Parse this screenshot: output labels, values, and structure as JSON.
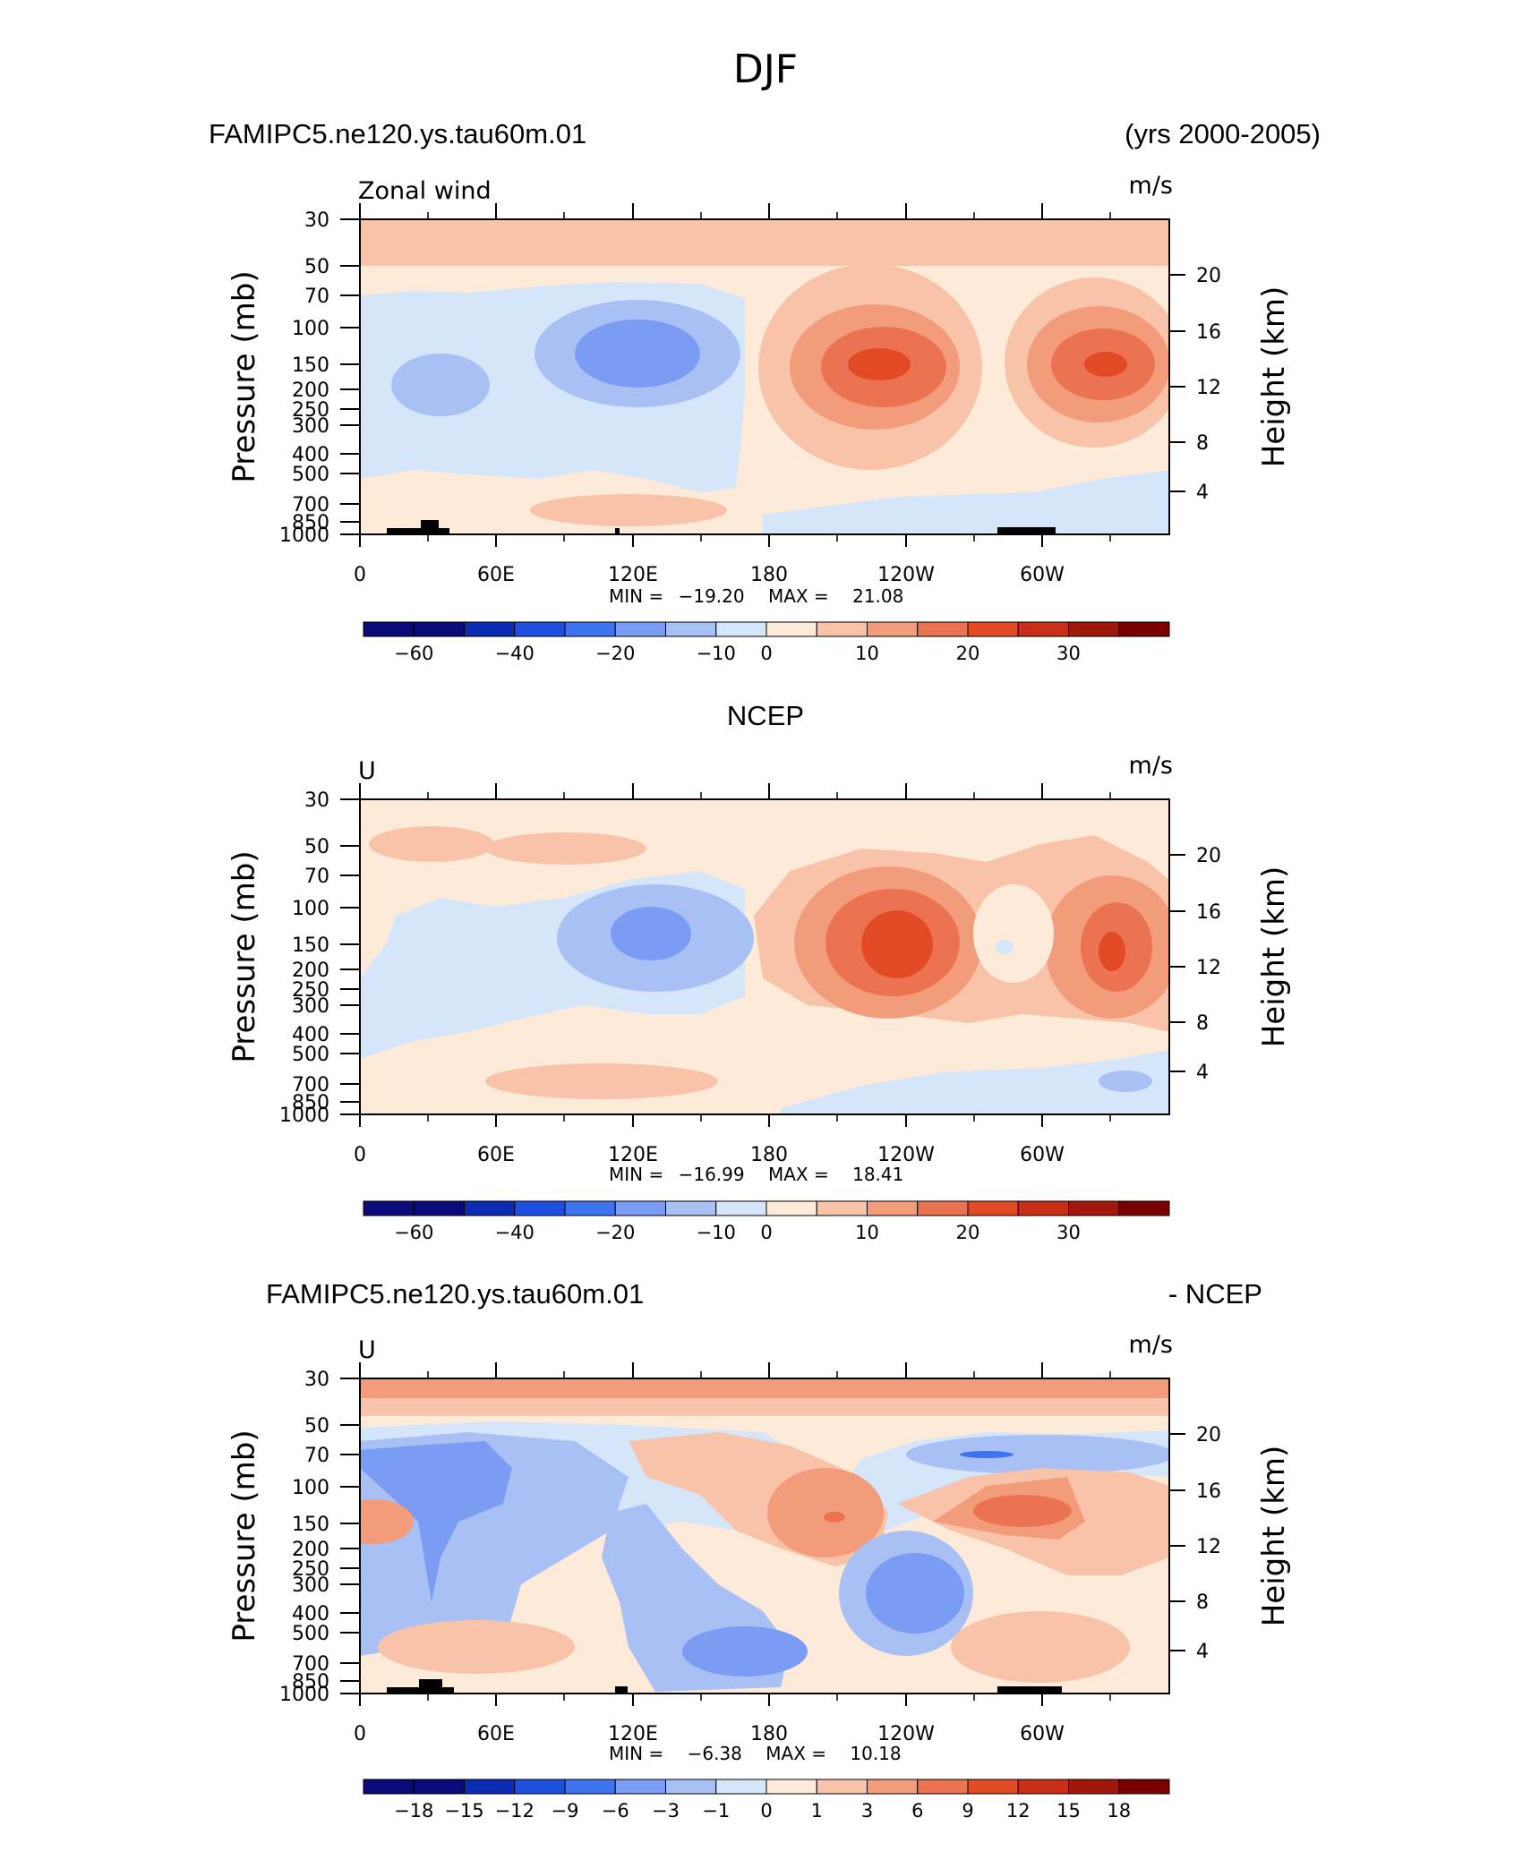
{
  "figure_title": "DJF",
  "chart_data": [
    {
      "type": "heatmap",
      "panel": "model",
      "left_title": "FAMIPC5.ne120.ys.tau60m.01",
      "right_title": "(yrs 2000-2005)",
      "left_string": "Zonal wind",
      "units": "m/s",
      "ylabel": "Pressure (mb)",
      "y2label": "Height (km)",
      "x_ticks": [
        "0",
        "60E",
        "120E",
        "180",
        "120W",
        "60W"
      ],
      "y_ticks": [
        "30",
        "50",
        "70",
        "100",
        "150",
        "200",
        "250",
        "300",
        "400",
        "500",
        "700",
        "850",
        "1000"
      ],
      "y2_ticks": [
        "20",
        "16",
        "12",
        "8",
        "4"
      ],
      "stats": {
        "min_label": "MIN =",
        "min": "−19.20",
        "max_label": "MAX =",
        "max": "21.08"
      },
      "colorbar": {
        "colors": [
          "#0a0a7a",
          "#0b2bb3",
          "#1e4fe0",
          "#3f74f0",
          "#7a9cf2",
          "#a9c0f5",
          "#d5e6fb",
          "#feead9",
          "#f8c3a8",
          "#f39c7b",
          "#ec7351",
          "#e24a26",
          "#c92f18",
          "#a3180c",
          "#7a0000"
        ],
        "labels": [
          "−60",
          "−40",
          "−20",
          "−10",
          "0",
          "10",
          "20",
          "30"
        ]
      }
    },
    {
      "type": "heatmap",
      "panel": "observations",
      "center_title": "NCEP",
      "left_string": "U",
      "units": "m/s",
      "ylabel": "Pressure (mb)",
      "y2label": "Height (km)",
      "x_ticks": [
        "0",
        "60E",
        "120E",
        "180",
        "120W",
        "60W"
      ],
      "y_ticks": [
        "30",
        "50",
        "70",
        "100",
        "150",
        "200",
        "250",
        "300",
        "400",
        "500",
        "700",
        "850",
        "1000"
      ],
      "y2_ticks": [
        "20",
        "16",
        "12",
        "8",
        "4"
      ],
      "stats": {
        "min_label": "MIN =",
        "min": "−16.99",
        "max_label": "MAX =",
        "max": "18.41"
      },
      "colorbar": {
        "labels": [
          "−60",
          "−40",
          "−20",
          "−10",
          "0",
          "10",
          "20",
          "30"
        ]
      }
    },
    {
      "type": "heatmap",
      "panel": "difference",
      "left_title": "FAMIPC5.ne120.ys.tau60m.01",
      "right_title": "- NCEP",
      "left_string": "U",
      "units": "m/s",
      "ylabel": "Pressure (mb)",
      "y2label": "Height (km)",
      "x_ticks": [
        "0",
        "60E",
        "120E",
        "180",
        "120W",
        "60W"
      ],
      "y_ticks": [
        "30",
        "50",
        "70",
        "100",
        "150",
        "200",
        "250",
        "300",
        "400",
        "500",
        "700",
        "850",
        "1000"
      ],
      "y2_ticks": [
        "20",
        "16",
        "12",
        "8",
        "4"
      ],
      "stats": {
        "min_label": "MIN =",
        "min": "−6.38",
        "max_label": "MAX =",
        "max": "10.18"
      },
      "colorbar": {
        "labels": [
          "−18",
          "−15",
          "−12",
          "−9",
          "−6",
          "−3",
          "−1",
          "0",
          "1",
          "3",
          "6",
          "9",
          "12",
          "15",
          "18"
        ]
      }
    }
  ]
}
